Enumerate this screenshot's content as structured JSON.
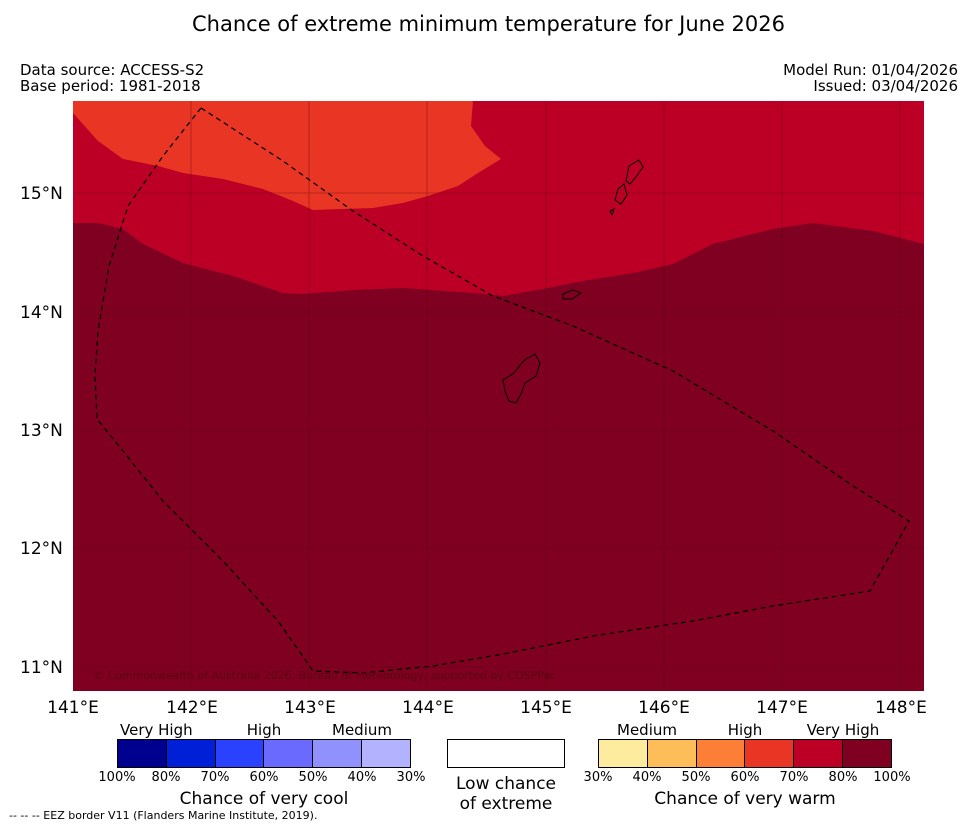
{
  "title": "Chance of extreme minimum temperature for June 2026",
  "data_source": "Data source: ACCESS-S2",
  "base_period": "Base period: 1981-2018",
  "model_run": "Model Run: 01/04/2026",
  "issued": "Issued: 03/04/2026",
  "lat_labels": [
    "15°N",
    "14°N",
    "13°N",
    "12°N",
    "11°N"
  ],
  "lon_labels": [
    "141°E",
    "142°E",
    "143°E",
    "144°E",
    "145°E",
    "146°E",
    "147°E",
    "148°E"
  ],
  "copyright": "© Commonwealth of Australia 2026, Bureau of Meteorology, supported by COSPPac",
  "colors": {
    "very_high_warm": "#7f0020",
    "high_warm_70_80": "#bc0025",
    "high_warm_60_70": "#e83524",
    "border_line": "#000000"
  },
  "legend": {
    "cool": {
      "categories": [
        "Very High",
        "High",
        "Medium"
      ],
      "ticks": [
        "100%",
        "80%",
        "70%",
        "60%",
        "50%",
        "40%",
        "30%"
      ],
      "colors": [
        "#00008f",
        "#0020d8",
        "#2a41fd",
        "#6a6afe",
        "#9191fd",
        "#b2b2fe"
      ],
      "title": "Chance of very cool"
    },
    "neutral": {
      "title_line1": "Low chance",
      "title_line2": "of extreme",
      "color": "#ffffff"
    },
    "warm": {
      "categories": [
        "Medium",
        "High",
        "Very High"
      ],
      "ticks": [
        "30%",
        "40%",
        "50%",
        "60%",
        "70%",
        "80%",
        "100%"
      ],
      "colors": [
        "#feec9e",
        "#fdbe5a",
        "#fd7e36",
        "#e83524",
        "#bc0025",
        "#7f0020"
      ],
      "title": "Chance of very warm"
    }
  },
  "footnote": "--  --  -- EEZ border V11 (Flanders Marine Institute, 2019)."
}
